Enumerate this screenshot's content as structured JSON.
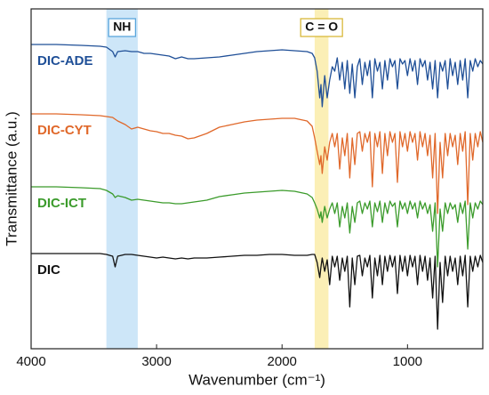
{
  "chart_data": {
    "type": "line",
    "xlabel": "Wavenumber (cm⁻¹)",
    "ylabel": "Transmittance (a.u.)",
    "xlim": [
      4000,
      400
    ],
    "xticks": [
      4000,
      3000,
      2000,
      1000
    ],
    "ylim": [
      0,
      382
    ],
    "bands": [
      {
        "label": "NH",
        "range": [
          3400,
          3150
        ],
        "color": "#cde6f8",
        "border": "#5aa6dc"
      },
      {
        "label": "C = O",
        "range": [
          1740,
          1630
        ],
        "color": "#fbefb6",
        "border": "#d8b83a"
      }
    ],
    "x": [
      4000,
      3800,
      3600,
      3450,
      3400,
      3350,
      3330,
      3310,
      3250,
      3200,
      3150,
      3100,
      3050,
      3000,
      2950,
      2900,
      2850,
      2800,
      2750,
      2700,
      2600,
      2500,
      2400,
      2300,
      2200,
      2100,
      2000,
      1900,
      1800,
      1760,
      1740,
      1720,
      1700,
      1690,
      1680,
      1660,
      1640,
      1620,
      1600,
      1580,
      1560,
      1540,
      1520,
      1500,
      1480,
      1460,
      1440,
      1420,
      1400,
      1380,
      1360,
      1340,
      1320,
      1300,
      1280,
      1260,
      1240,
      1220,
      1200,
      1180,
      1160,
      1140,
      1120,
      1100,
      1080,
      1060,
      1040,
      1020,
      1000,
      980,
      960,
      940,
      920,
      900,
      880,
      860,
      840,
      820,
      800,
      780,
      760,
      740,
      720,
      700,
      680,
      660,
      640,
      620,
      600,
      580,
      560,
      540,
      520,
      500,
      480,
      460,
      440,
      420,
      400
    ],
    "series": [
      {
        "name": "DIC-ADE",
        "color": "#1f4f97",
        "values": [
          342,
          342,
          341,
          340,
          339,
          334,
          328,
          334,
          335,
          334,
          334,
          332,
          332,
          331,
          330,
          329,
          326,
          328,
          326,
          326,
          327,
          328,
          330,
          332,
          334,
          335,
          336,
          335,
          334,
          332,
          327,
          312,
          282,
          297,
          272,
          307,
          282,
          302,
          317,
          312,
          327,
          302,
          322,
          292,
          324,
          287,
          320,
          282,
          317,
          326,
          297,
          322,
          307,
          324,
          282,
          326,
          312,
          322,
          292,
          324,
          302,
          326,
          317,
          324,
          292,
          326,
          320,
          324,
          307,
          326,
          312,
          324,
          297,
          326,
          317,
          324,
          302,
          322,
          292,
          324,
          282,
          322,
          312,
          324,
          292,
          326,
          307,
          322,
          297,
          324,
          302,
          326,
          282,
          324,
          312,
          326,
          317,
          324,
          320
        ]
      },
      {
        "name": "DIC-CYT",
        "color": "#e0682a",
        "values": [
          264,
          264,
          263,
          262,
          261,
          260,
          258,
          256,
          252,
          247,
          249,
          247,
          245,
          244,
          242,
          242,
          240,
          239,
          236,
          237,
          242,
          249,
          252,
          255,
          257,
          258,
          259,
          259,
          256,
          250,
          237,
          222,
          207,
          217,
          197,
          227,
          212,
          232,
          242,
          227,
          242,
          202,
          237,
          217,
          242,
          192,
          237,
          207,
          242,
          244,
          222,
          242,
          232,
          244,
          182,
          242,
          227,
          244,
          197,
          242,
          217,
          244,
          232,
          242,
          187,
          244,
          227,
          242,
          222,
          244,
          232,
          242,
          212,
          244,
          227,
          242,
          217,
          240,
          192,
          242,
          152,
          232,
          192,
          242,
          217,
          242,
          227,
          240,
          207,
          242,
          222,
          244,
          162,
          242,
          212,
          242,
          227,
          244,
          232
        ]
      },
      {
        "name": "DIC-ICT",
        "color": "#3b9b2b",
        "values": [
          182,
          182,
          181,
          180,
          178,
          174,
          170,
          172,
          170,
          167,
          168,
          167,
          166,
          165,
          164,
          164,
          163,
          163,
          164,
          165,
          167,
          171,
          173,
          175,
          176,
          177,
          178,
          177,
          174,
          170,
          164,
          157,
          147,
          154,
          142,
          160,
          147,
          157,
          164,
          152,
          164,
          137,
          160,
          147,
          164,
          130,
          160,
          142,
          164,
          166,
          152,
          164,
          157,
          166,
          137,
          164,
          154,
          166,
          142,
          164,
          152,
          166,
          160,
          164,
          137,
          166,
          157,
          164,
          152,
          166,
          157,
          164,
          147,
          166,
          157,
          164,
          152,
          162,
          132,
          164,
          92,
          157,
          132,
          164,
          152,
          164,
          157,
          162,
          142,
          164,
          152,
          166,
          112,
          164,
          147,
          164,
          157,
          166,
          162
        ]
      },
      {
        "name": "DIC",
        "color": "#111111",
        "values": [
          107,
          107,
          107,
          107,
          106,
          104,
          92,
          104,
          106,
          106,
          105,
          104,
          103,
          102,
          103,
          102,
          101,
          102,
          101,
          102,
          102,
          103,
          104,
          105,
          105,
          106,
          106,
          105,
          105,
          106,
          106,
          97,
          80,
          92,
          102,
          87,
          100,
          72,
          104,
          92,
          104,
          77,
          102,
          87,
          104,
          47,
          102,
          72,
          104,
          105,
          82,
          102,
          92,
          105,
          57,
          102,
          82,
          105,
          72,
          104,
          87,
          105,
          92,
          104,
          62,
          105,
          87,
          104,
          82,
          105,
          92,
          104,
          72,
          105,
          87,
          104,
          77,
          102,
          57,
          104,
          22,
          97,
          52,
          104,
          82,
          104,
          87,
          102,
          72,
          104,
          82,
          105,
          47,
          104,
          87,
          104,
          92,
          105,
          97
        ]
      }
    ]
  }
}
